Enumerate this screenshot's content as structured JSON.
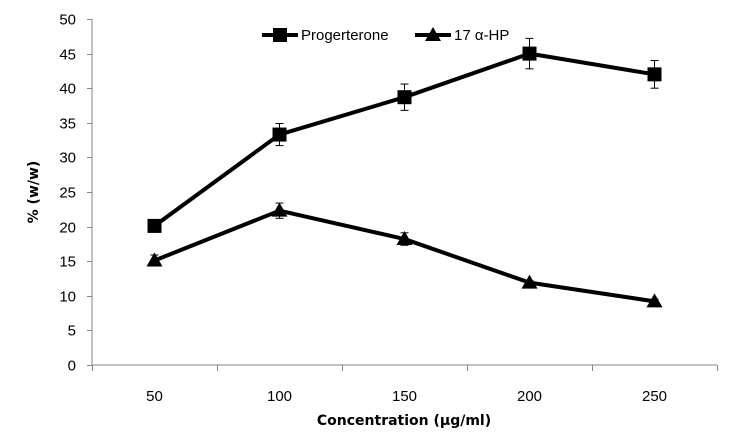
{
  "chart_data": {
    "type": "line",
    "title": "",
    "xlabel": "Concentration (µg/ml)",
    "ylabel": "% (w/w)",
    "categories": [
      "50",
      "100",
      "150",
      "200",
      "250"
    ],
    "ylim": [
      0,
      50
    ],
    "yticks": [
      "0",
      "5",
      "10",
      "15",
      "20",
      "25",
      "30",
      "35",
      "40",
      "45",
      "50"
    ],
    "ytick_values": [
      0,
      5,
      10,
      15,
      20,
      25,
      30,
      35,
      40,
      45,
      50
    ],
    "grid": false,
    "legend_position": "top-center",
    "series": [
      {
        "name": "Progerterone",
        "marker": "square",
        "color": "#000000",
        "values": [
          20.1,
          33.3,
          38.7,
          45.0,
          42.0
        ],
        "errors": [
          0.3,
          1.6,
          1.9,
          2.2,
          2.0
        ]
      },
      {
        "name": "17 α-HP",
        "marker": "triangle",
        "color": "#000000",
        "values": [
          15.1,
          22.3,
          18.2,
          11.9,
          9.2
        ],
        "errors": [
          0.8,
          1.1,
          0.9,
          0.3,
          0.3
        ]
      }
    ]
  },
  "colors": {
    "axis": "#868686",
    "series": "#000000"
  }
}
